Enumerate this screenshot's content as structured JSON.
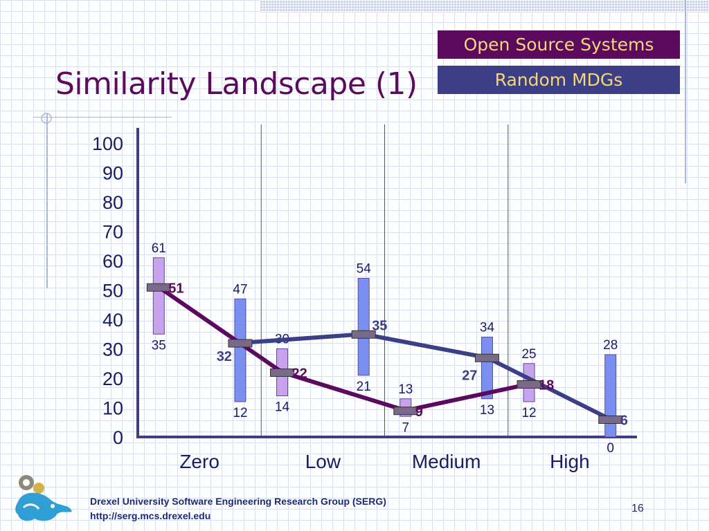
{
  "slide": {
    "title": "Similarity Landscape (1)",
    "footer_line1": "Drexel University Software Engineering Research Group (SERG)",
    "footer_line2": "http://serg.mcs.drexel.edu",
    "page_number": "16"
  },
  "legend": {
    "oss_label": "Open Source Systems",
    "random_label": "Random MDGs"
  },
  "colors": {
    "oss": "#5b0a5e",
    "oss_bar": "#c9a2ee",
    "random": "#3d3f86",
    "random_bar": "#7b8ff0",
    "axis": "#3d3f86",
    "marker": "#7a6a8a",
    "accent_text": "#f3d77a"
  },
  "chart_data": {
    "type": "line",
    "categories": [
      "Zero",
      "Low",
      "Medium",
      "High"
    ],
    "ylim": [
      0,
      100
    ],
    "yticks": [
      0,
      10,
      20,
      30,
      40,
      50,
      60,
      70,
      80,
      90,
      100
    ],
    "series": [
      {
        "name": "Open Source Systems",
        "values": [
          51,
          22,
          9,
          18
        ],
        "ranges": [
          [
            35,
            61
          ],
          [
            14,
            30
          ],
          [
            7,
            13
          ],
          [
            12,
            25
          ]
        ]
      },
      {
        "name": "Random MDGs",
        "values": [
          32,
          35,
          27,
          6
        ],
        "ranges": [
          [
            12,
            47
          ],
          [
            21,
            54
          ],
          [
            13,
            34
          ],
          [
            0,
            28
          ]
        ]
      }
    ]
  }
}
